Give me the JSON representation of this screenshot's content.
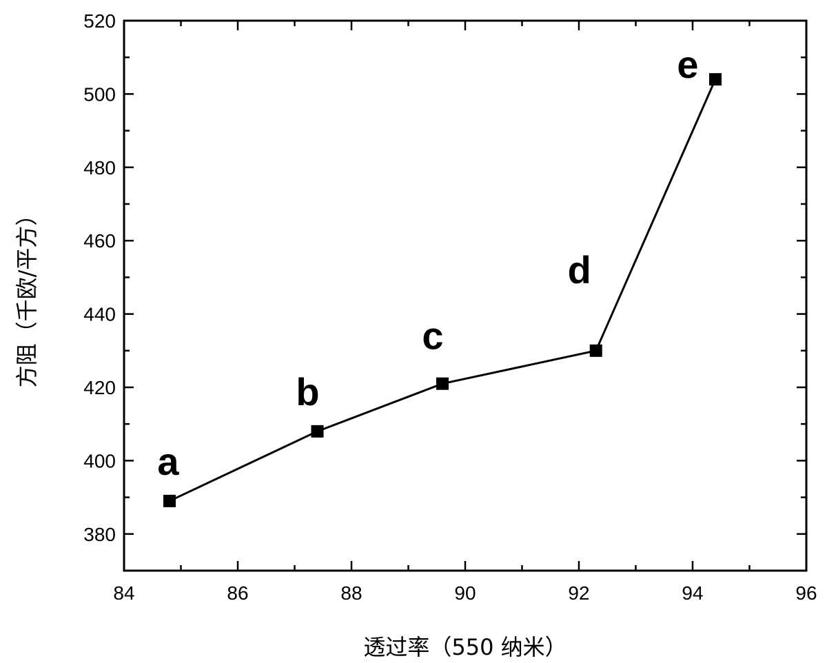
{
  "chart_data": {
    "type": "line",
    "title": "",
    "xlabel": "透过率（550 纳米）",
    "ylabel": "方阻（千欧/平方）",
    "xlim": [
      84,
      96
    ],
    "ylim": [
      370,
      520
    ],
    "xticks": [
      84,
      86,
      88,
      90,
      92,
      94,
      96
    ],
    "yticks": [
      380,
      400,
      420,
      440,
      460,
      480,
      500,
      520
    ],
    "grid": false,
    "series": [
      {
        "color": "#000000",
        "marker": "square",
        "points": [
          {
            "label": "a",
            "x": 84.8,
            "y": 389
          },
          {
            "label": "b",
            "x": 87.4,
            "y": 408
          },
          {
            "label": "c",
            "x": 89.6,
            "y": 421
          },
          {
            "label": "d",
            "x": 92.3,
            "y": 430
          },
          {
            "label": "e",
            "x": 94.4,
            "y": 504
          }
        ]
      }
    ]
  }
}
